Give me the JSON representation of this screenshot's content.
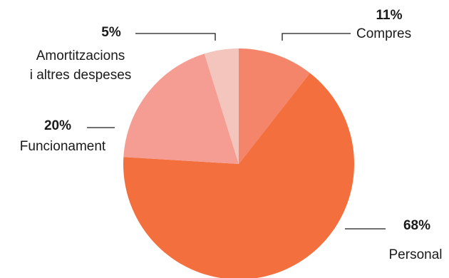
{
  "chart_data": {
    "type": "pie",
    "title": "",
    "slices": [
      {
        "label": "Compres",
        "value": 11,
        "display": "11%",
        "color": "#f4856a"
      },
      {
        "label": "Personal",
        "value": 68,
        "display": "68%",
        "color": "#f36f3d"
      },
      {
        "label": "Funcionament",
        "value": 20,
        "display": "20%",
        "color": "#f59d92"
      },
      {
        "label": "Amortitzacions i altres despeses",
        "label_lines": [
          "Amortitzacions",
          "i altres despeses"
        ],
        "value": 5,
        "display": "5%",
        "color": "#f4c5bd"
      }
    ],
    "start_angle": "12 o'clock",
    "direction": "clockwise",
    "legend": "none"
  }
}
